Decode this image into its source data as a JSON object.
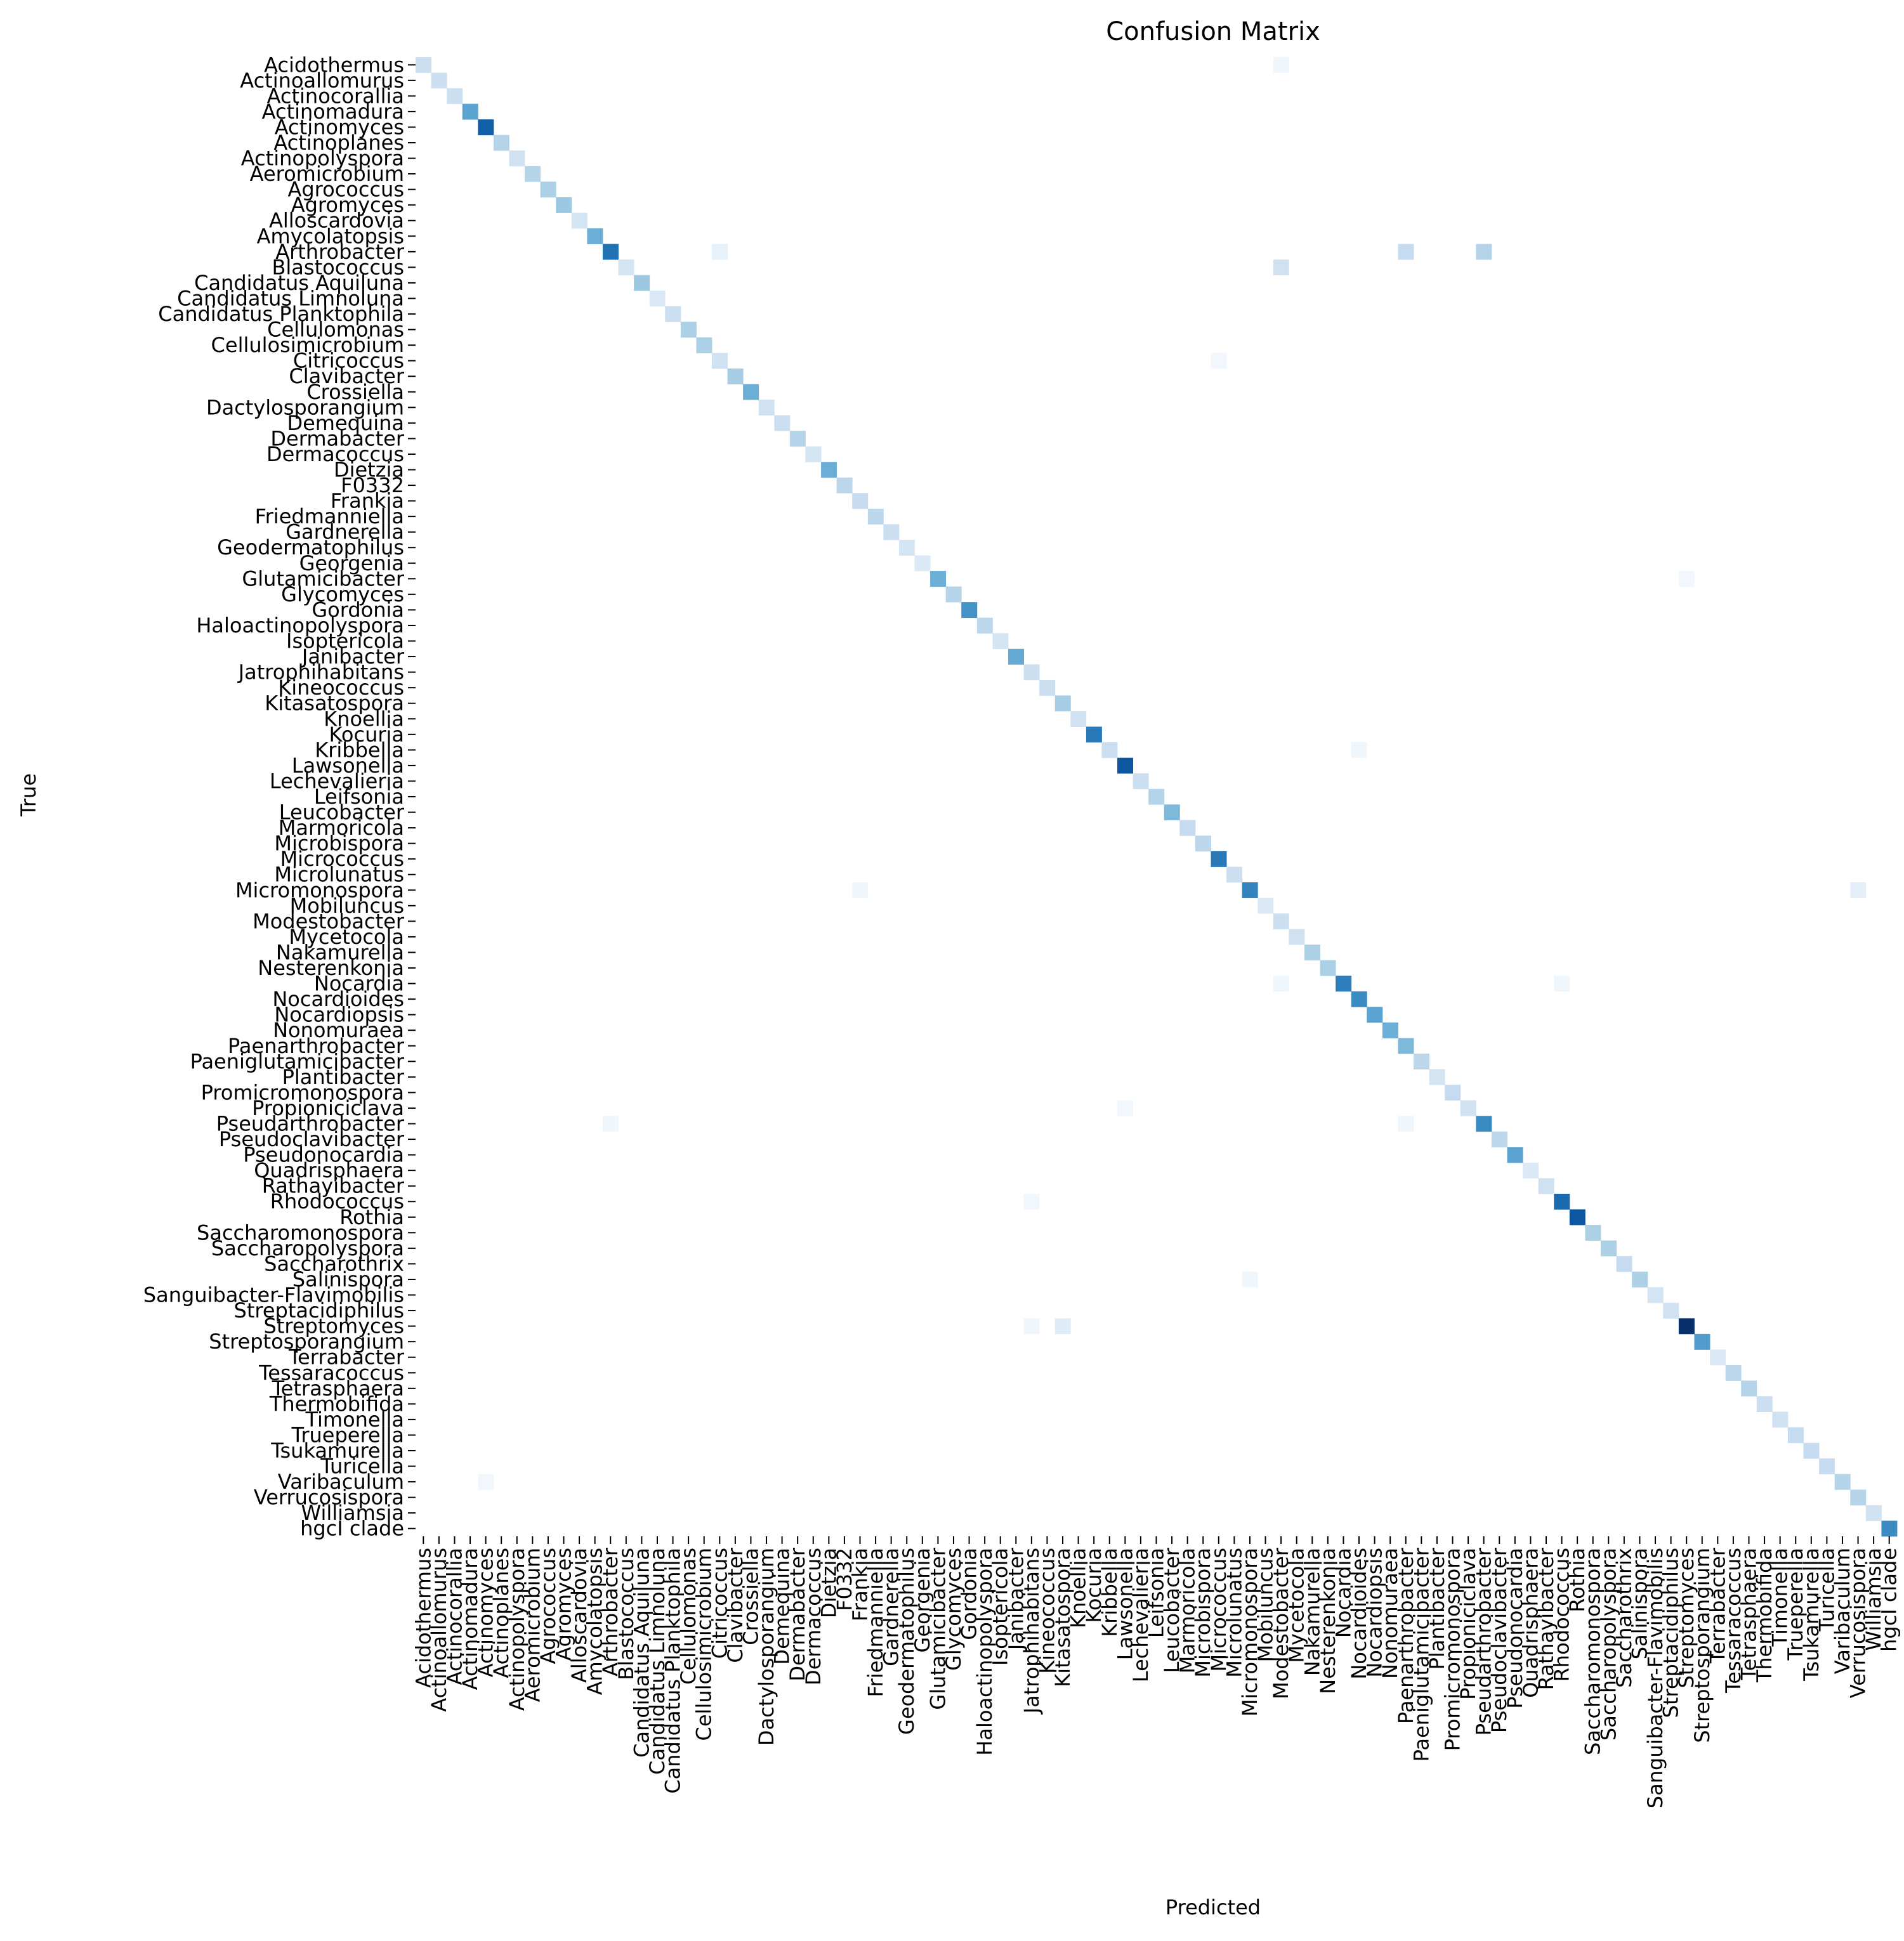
{
  "chart_data": {
    "type": "heatmap",
    "title": "Confusion Matrix",
    "xlabel": "Predicted",
    "ylabel": "True",
    "colormap": "Blues",
    "grid": false,
    "legend": "none",
    "labels": [
      "Acidothermus",
      "Actinoallomurus",
      "Actinocorallia",
      "Actinomadura",
      "Actinomyces",
      "Actinoplanes",
      "Actinopolyspora",
      "Aeromicrobium",
      "Agrococcus",
      "Agromyces",
      "Alloscardovia",
      "Amycolatopsis",
      "Arthrobacter",
      "Blastococcus",
      "Candidatus Aquiluna",
      "Candidatus Limnoluna",
      "Candidatus Planktophila",
      "Cellulomonas",
      "Cellulosimicrobium",
      "Citricoccus",
      "Clavibacter",
      "Crossiella",
      "Dactylosporangium",
      "Demequina",
      "Dermabacter",
      "Dermacoccus",
      "Dietzia",
      "F0332",
      "Frankia",
      "Friedmanniella",
      "Gardnerella",
      "Geodermatophilus",
      "Georgenia",
      "Glutamicibacter",
      "Glycomyces",
      "Gordonia",
      "Haloactinopolyspora",
      "Isoptericola",
      "Janibacter",
      "Jatrophihabitans",
      "Kineococcus",
      "Kitasatospora",
      "Knoellia",
      "Kocuria",
      "Kribbella",
      "Lawsonella",
      "Lechevalieria",
      "Leifsonia",
      "Leucobacter",
      "Marmoricola",
      "Microbispora",
      "Micrococcus",
      "Microlunatus",
      "Micromonospora",
      "Mobiluncus",
      "Modestobacter",
      "Mycetocola",
      "Nakamurella",
      "Nesterenkonia",
      "Nocardia",
      "Nocardioides",
      "Nocardiopsis",
      "Nonomuraea",
      "Paenarthrobacter",
      "Paeniglutamicibacter",
      "Plantibacter",
      "Promicromonospora",
      "Propioniciclava",
      "Pseudarthrobacter",
      "Pseudoclavibacter",
      "Pseudonocardia",
      "Quadrisphaera",
      "Rathayibacter",
      "Rhodococcus",
      "Rothia",
      "Saccharomonospora",
      "Saccharopolyspora",
      "Saccharothrix",
      "Salinispora",
      "Sanguibacter-Flavimobilis",
      "Streptacidiphilus",
      "Streptomyces",
      "Streptosporangium",
      "Terrabacter",
      "Tessaracoccus",
      "Tetrasphaera",
      "Thermobifida",
      "Timonella",
      "Trueperella",
      "Tsukamurella",
      "Turicella",
      "Varibaculum",
      "Verrucosispora",
      "Williamsia",
      "hgcI clade"
    ],
    "diagonal": [
      0.22,
      0.22,
      0.22,
      0.55,
      0.82,
      0.3,
      0.2,
      0.3,
      0.33,
      0.38,
      0.18,
      0.5,
      0.75,
      0.18,
      0.38,
      0.14,
      0.22,
      0.33,
      0.33,
      0.2,
      0.35,
      0.5,
      0.2,
      0.22,
      0.3,
      0.18,
      0.5,
      0.28,
      0.25,
      0.28,
      0.22,
      0.18,
      0.14,
      0.5,
      0.3,
      0.62,
      0.28,
      0.18,
      0.52,
      0.22,
      0.22,
      0.35,
      0.2,
      0.72,
      0.22,
      0.85,
      0.22,
      0.3,
      0.45,
      0.25,
      0.28,
      0.72,
      0.22,
      0.68,
      0.14,
      0.22,
      0.2,
      0.33,
      0.33,
      0.7,
      0.65,
      0.55,
      0.5,
      0.45,
      0.28,
      0.18,
      0.25,
      0.2,
      0.65,
      0.28,
      0.55,
      0.14,
      0.2,
      0.78,
      0.85,
      0.33,
      0.33,
      0.25,
      0.33,
      0.18,
      0.2,
      1.0,
      0.58,
      0.14,
      0.28,
      0.3,
      0.22,
      0.2,
      0.25,
      0.25,
      0.25,
      0.3,
      0.3,
      0.2,
      0.65
    ],
    "offdiagonal": [
      {
        "row": 0,
        "col": 55,
        "value": 0.04
      },
      {
        "row": 12,
        "col": 19,
        "value": 0.08
      },
      {
        "row": 12,
        "col": 63,
        "value": 0.25
      },
      {
        "row": 12,
        "col": 68,
        "value": 0.3
      },
      {
        "row": 13,
        "col": 55,
        "value": 0.2
      },
      {
        "row": 19,
        "col": 51,
        "value": 0.03
      },
      {
        "row": 33,
        "col": 81,
        "value": 0.03
      },
      {
        "row": 44,
        "col": 60,
        "value": 0.04
      },
      {
        "row": 53,
        "col": 28,
        "value": 0.04
      },
      {
        "row": 53,
        "col": 92,
        "value": 0.1
      },
      {
        "row": 59,
        "col": 55,
        "value": 0.04
      },
      {
        "row": 59,
        "col": 73,
        "value": 0.04
      },
      {
        "row": 67,
        "col": 45,
        "value": 0.03
      },
      {
        "row": 68,
        "col": 12,
        "value": 0.04
      },
      {
        "row": 68,
        "col": 63,
        "value": 0.04
      },
      {
        "row": 73,
        "col": 39,
        "value": 0.03
      },
      {
        "row": 78,
        "col": 53,
        "value": 0.04
      },
      {
        "row": 81,
        "col": 39,
        "value": 0.04
      },
      {
        "row": 81,
        "col": 41,
        "value": 0.12
      },
      {
        "row": 91,
        "col": 4,
        "value": 0.03
      }
    ]
  }
}
